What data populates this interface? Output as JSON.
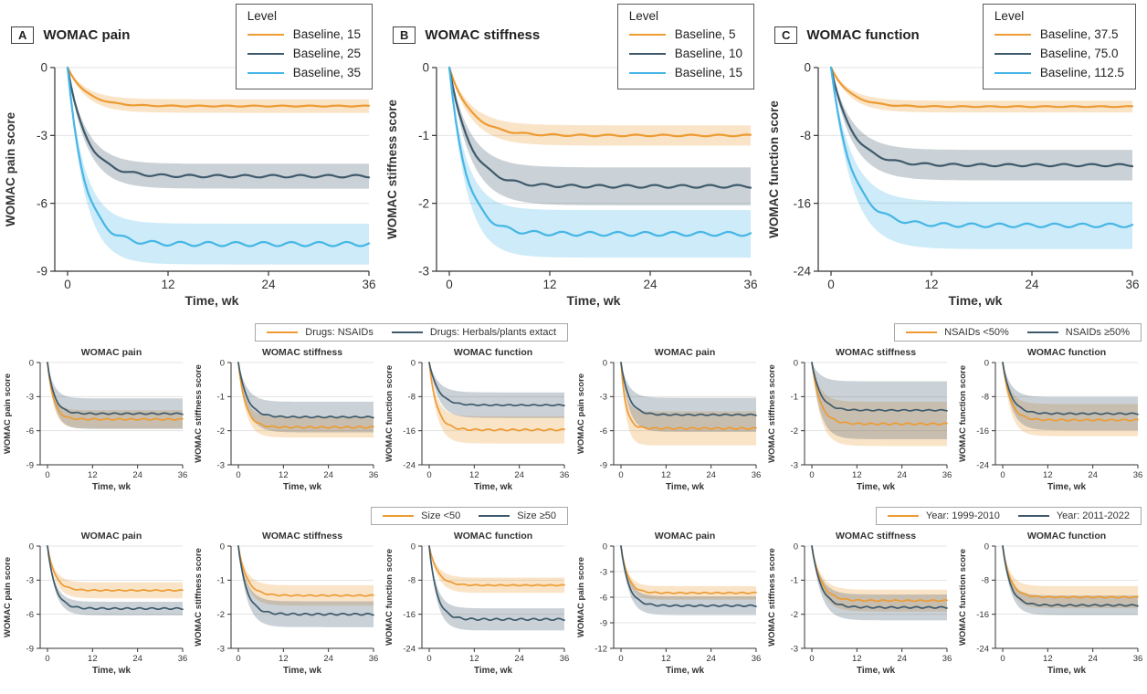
{
  "colors": {
    "orange": "#ED9B33",
    "navy": "#3E5A6C",
    "blue": "#45B6E6",
    "grid": "#E3E3E3",
    "axis": "#333333",
    "band_opacity": 0.27
  },
  "chart_data": {
    "type": "line",
    "x_label": "Time, wk",
    "x_range": [
      0,
      36
    ],
    "x_ticks": [
      0,
      12,
      24,
      36
    ],
    "note": "Curves drop from 0 and plateau; shaded bands are confidence intervals. 'plateau' = final value at 36 wk, 'ci' = half-width of band at plateau, 'tau' = exponential time constant in weeks.",
    "top_panels": [
      {
        "panel_label": "A",
        "title": "WOMAC pain",
        "ylabel": "WOMAC pain score",
        "ylim": [
          -9,
          0
        ],
        "yticks": [
          0,
          -3,
          -6,
          -9
        ],
        "legend_title": "Level",
        "series": [
          {
            "name": "Baseline, 15",
            "color": "orange",
            "plateau": -1.7,
            "ci": 0.3,
            "tau": 2.2
          },
          {
            "name": "Baseline, 25",
            "color": "navy",
            "plateau": -4.8,
            "ci": 0.55,
            "tau": 2.2
          },
          {
            "name": "Baseline, 35",
            "color": "blue",
            "plateau": -7.8,
            "ci": 0.9,
            "tau": 2.0
          }
        ]
      },
      {
        "panel_label": "B",
        "title": "WOMAC stiffness",
        "ylabel": "WOMAC stiffness score",
        "ylim": [
          -3,
          0
        ],
        "yticks": [
          0,
          -1,
          -2,
          -3
        ],
        "legend_title": "Level",
        "series": [
          {
            "name": "Baseline, 5",
            "color": "orange",
            "plateau": -1.0,
            "ci": 0.15,
            "tau": 2.5
          },
          {
            "name": "Baseline, 10",
            "color": "navy",
            "plateau": -1.75,
            "ci": 0.28,
            "tau": 2.4
          },
          {
            "name": "Baseline, 15",
            "color": "blue",
            "plateau": -2.45,
            "ci": 0.35,
            "tau": 2.0
          }
        ]
      },
      {
        "panel_label": "C",
        "title": "WOMAC function",
        "ylabel": "WOMAC function score",
        "ylim": [
          -24,
          0
        ],
        "yticks": [
          0,
          -8,
          -16,
          -24
        ],
        "legend_title": "Level",
        "series": [
          {
            "name": "Baseline, 37.5",
            "color": "orange",
            "plateau": -4.6,
            "ci": 0.7,
            "tau": 2.2
          },
          {
            "name": "Baseline, 75.0",
            "color": "navy",
            "plateau": -11.5,
            "ci": 1.8,
            "tau": 2.4
          },
          {
            "name": "Baseline, 112.5",
            "color": "blue",
            "plateau": -18.6,
            "ci": 2.8,
            "tau": 2.4
          }
        ]
      }
    ],
    "subgroup_rows": [
      {
        "groups": [
          {
            "legend": [
              {
                "name": "Drugs: NSAIDs",
                "color": "orange"
              },
              {
                "name": "Drugs: Herbals/plants extact",
                "color": "navy"
              }
            ],
            "charts": [
              {
                "title": "WOMAC pain",
                "ylabel": "WOMAC pain score",
                "ylim": [
                  -9,
                  0
                ],
                "yticks": [
                  0,
                  -3,
                  -6,
                  -9
                ],
                "series": [
                  {
                    "name": "Drugs: NSAIDs",
                    "color": "orange",
                    "plateau": -5.0,
                    "ci": 0.8,
                    "tau": 1.6
                  },
                  {
                    "name": "Drugs: Herbals/plants extact",
                    "color": "navy",
                    "plateau": -4.5,
                    "ci": 1.35,
                    "tau": 1.8
                  }
                ]
              },
              {
                "title": "WOMAC stiffness",
                "ylabel": "WOMAC stiffness score",
                "ylim": [
                  -3,
                  0
                ],
                "yticks": [
                  0,
                  -1,
                  -2,
                  -3
                ],
                "series": [
                  {
                    "name": "Drugs: NSAIDs",
                    "color": "orange",
                    "plateau": -1.9,
                    "ci": 0.3,
                    "tau": 1.9
                  },
                  {
                    "name": "Drugs: Herbals/plants extact",
                    "color": "navy",
                    "plateau": -1.6,
                    "ci": 0.45,
                    "tau": 2.3
                  }
                ]
              },
              {
                "title": "WOMAC function",
                "ylabel": "WOMAC function score",
                "ylim": [
                  -24,
                  0
                ],
                "yticks": [
                  0,
                  -8,
                  -16,
                  -24
                ],
                "series": [
                  {
                    "name": "Drugs: NSAIDs",
                    "color": "orange",
                    "plateau": -15.8,
                    "ci": 3.2,
                    "tau": 2.0
                  },
                  {
                    "name": "Drugs: Herbals/plants extact",
                    "color": "navy",
                    "plateau": -10.0,
                    "ci": 3.0,
                    "tau": 2.4
                  }
                ]
              }
            ]
          },
          {
            "legend": [
              {
                "name": "NSAIDs <50%",
                "color": "orange"
              },
              {
                "name": "NSAIDs ≥50%",
                "color": "navy"
              }
            ],
            "charts": [
              {
                "title": "WOMAC pain",
                "ylabel": "WOMAC pain score",
                "ylim": [
                  -9,
                  0
                ],
                "yticks": [
                  0,
                  -3,
                  -6,
                  -9
                ],
                "series": [
                  {
                    "name": "NSAIDs <50%",
                    "color": "orange",
                    "plateau": -5.8,
                    "ci": 1.5,
                    "tau": 1.3
                  },
                  {
                    "name": "NSAIDs ≥50%",
                    "color": "navy",
                    "plateau": -4.6,
                    "ci": 1.5,
                    "tau": 2.0
                  }
                ]
              },
              {
                "title": "WOMAC stiffness",
                "ylabel": "WOMAC stiffness score",
                "ylim": [
                  -3,
                  0
                ],
                "yticks": [
                  0,
                  -1,
                  -2,
                  -3
                ],
                "series": [
                  {
                    "name": "NSAIDs <50%",
                    "color": "orange",
                    "plateau": -1.8,
                    "ci": 0.65,
                    "tau": 2.2
                  },
                  {
                    "name": "NSAIDs ≥50%",
                    "color": "navy",
                    "plateau": -1.4,
                    "ci": 0.85,
                    "tau": 2.2
                  }
                ]
              },
              {
                "title": "WOMAC function",
                "ylabel": "WOMAC function score",
                "ylim": [
                  -24,
                  0
                ],
                "yticks": [
                  0,
                  -8,
                  -16,
                  -24
                ],
                "series": [
                  {
                    "name": "NSAIDs <50%",
                    "color": "orange",
                    "plateau": -13.5,
                    "ci": 3.8,
                    "tau": 2.0
                  },
                  {
                    "name": "NSAIDs ≥50%",
                    "color": "navy",
                    "plateau": -12.0,
                    "ci": 3.9,
                    "tau": 2.2
                  }
                ]
              }
            ]
          }
        ]
      },
      {
        "groups": [
          {
            "legend": [
              {
                "name": "Size <50",
                "color": "orange"
              },
              {
                "name": "Size ≥50",
                "color": "navy"
              }
            ],
            "charts": [
              {
                "title": "WOMAC pain",
                "ylabel": "WOMAC pain score",
                "ylim": [
                  -9,
                  0
                ],
                "yticks": [
                  0,
                  -3,
                  -6,
                  -9
                ],
                "series": [
                  {
                    "name": "Size <50",
                    "color": "orange",
                    "plateau": -3.9,
                    "ci": 0.7,
                    "tau": 2.0
                  },
                  {
                    "name": "Size ≥50",
                    "color": "navy",
                    "plateau": -5.5,
                    "ci": 0.6,
                    "tau": 2.0
                  }
                ]
              },
              {
                "title": "WOMAC stiffness",
                "ylabel": "WOMAC stiffness score",
                "ylim": [
                  -3,
                  0
                ],
                "yticks": [
                  0,
                  -1,
                  -2,
                  -3
                ],
                "series": [
                  {
                    "name": "Size <50",
                    "color": "orange",
                    "plateau": -1.45,
                    "ci": 0.3,
                    "tau": 2.2
                  },
                  {
                    "name": "Size ≥50",
                    "color": "navy",
                    "plateau": -2.0,
                    "ci": 0.38,
                    "tau": 2.2
                  }
                ]
              },
              {
                "title": "WOMAC function",
                "ylabel": "WOMAC function score",
                "ylim": [
                  -24,
                  0
                ],
                "yticks": [
                  0,
                  -8,
                  -16,
                  -24
                ],
                "series": [
                  {
                    "name": "Size <50",
                    "color": "orange",
                    "plateau": -9.2,
                    "ci": 1.8,
                    "tau": 2.2
                  },
                  {
                    "name": "Size ≥50",
                    "color": "navy",
                    "plateau": -17.2,
                    "ci": 2.6,
                    "tau": 2.0
                  }
                ]
              }
            ]
          },
          {
            "legend": [
              {
                "name": "Year: 1999-2010",
                "color": "orange"
              },
              {
                "name": "Year: 2011-2022",
                "color": "navy"
              }
            ],
            "charts": [
              {
                "title": "WOMAC pain",
                "ylabel": "WOMAC pain score",
                "ylim": [
                  -12,
                  0
                ],
                "yticks": [
                  0,
                  -3,
                  -6,
                  -9,
                  -12
                ],
                "series": [
                  {
                    "name": "Year: 1999-2010",
                    "color": "orange",
                    "plateau": -5.5,
                    "ci": 0.8,
                    "tau": 1.8
                  },
                  {
                    "name": "Year: 2011-2022",
                    "color": "navy",
                    "plateau": -7.0,
                    "ci": 1.1,
                    "tau": 2.0
                  }
                ]
              },
              {
                "title": "WOMAC stiffness",
                "ylabel": "WOMAC stiffness score",
                "ylim": [
                  -3,
                  0
                ],
                "yticks": [
                  0,
                  -1,
                  -2,
                  -3
                ],
                "series": [
                  {
                    "name": "Year: 1999-2010",
                    "color": "orange",
                    "plateau": -1.6,
                    "ci": 0.32,
                    "tau": 2.4
                  },
                  {
                    "name": "Year: 2011-2022",
                    "color": "navy",
                    "plateau": -1.8,
                    "ci": 0.38,
                    "tau": 2.4
                  }
                ]
              },
              {
                "title": "WOMAC function",
                "ylabel": "WOMAC function score",
                "ylim": [
                  -24,
                  0
                ],
                "yticks": [
                  0,
                  -8,
                  -16,
                  -24
                ],
                "series": [
                  {
                    "name": "Year: 1999-2010",
                    "color": "orange",
                    "plateau": -12.0,
                    "ci": 2.6,
                    "tau": 2.0
                  },
                  {
                    "name": "Year: 2011-2022",
                    "color": "navy",
                    "plateau": -13.9,
                    "ci": 2.3,
                    "tau": 2.0
                  }
                ]
              }
            ]
          }
        ]
      }
    ]
  }
}
